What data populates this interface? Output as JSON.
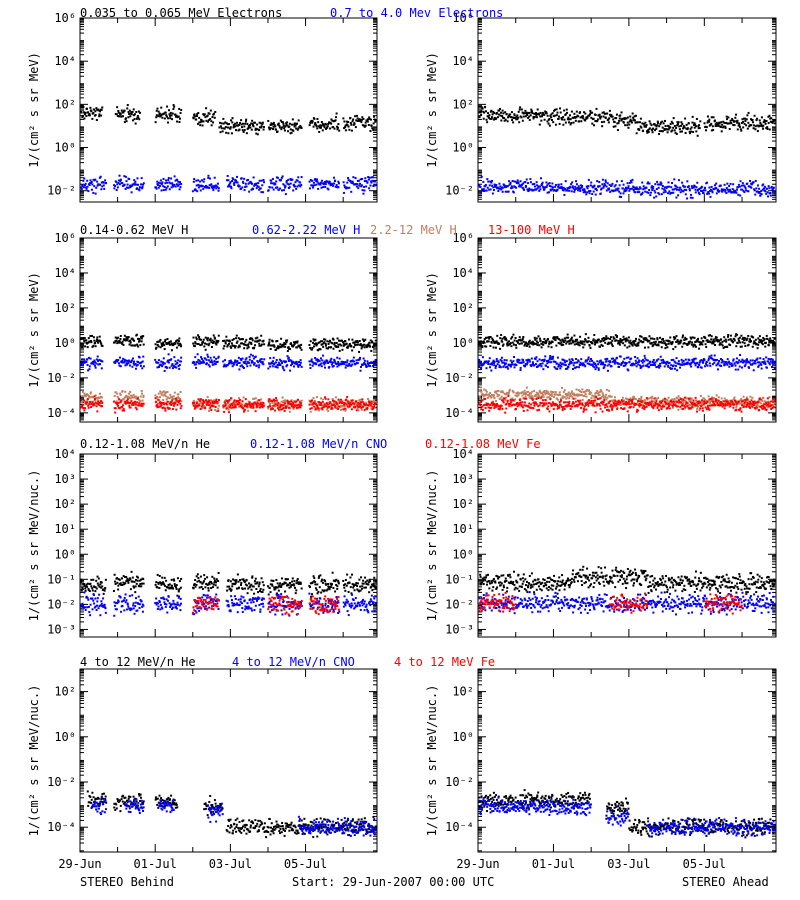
{
  "footer": {
    "left_label": "STEREO Behind",
    "center_label": "Start: 29-Jun-2007 00:00 UTC",
    "right_label": "STEREO Ahead"
  },
  "chart_data": [
    {
      "type": "scatter",
      "row": 0,
      "spacecraft": "STEREO Behind",
      "ylabel": "1/(cm² s sr MeV)",
      "yscale": "log",
      "ylim": [
        0.003,
        1000000
      ],
      "x_range_days": [
        0,
        7.9
      ],
      "x_ticks": [
        {
          "day": 0,
          "label": "29-Jun"
        },
        {
          "day": 2,
          "label": "01-Jul"
        },
        {
          "day": 4,
          "label": "03-Jul"
        },
        {
          "day": 6,
          "label": "05-Jul"
        }
      ],
      "y_ticks": [
        {
          "value": 0.01,
          "label": "10⁻²"
        },
        {
          "value": 1,
          "label": "10⁰"
        },
        {
          "value": 100,
          "label": "10²"
        },
        {
          "value": 10000,
          "label": "10⁴"
        },
        {
          "value": 1000000,
          "label": "10⁶"
        }
      ],
      "series": [
        {
          "name": "0.035 to 0.065 MeV Electrons",
          "color": "#000000",
          "segments": [
            [
              0.0,
              0.6,
              40
            ],
            [
              0.95,
              1.6,
              35
            ],
            [
              2.0,
              2.7,
              35
            ],
            [
              3.0,
              3.6,
              25
            ],
            [
              3.7,
              4.9,
              10
            ],
            [
              5.0,
              5.9,
              10
            ],
            [
              6.1,
              6.9,
              12
            ],
            [
              7.0,
              7.9,
              14
            ]
          ]
        },
        {
          "name": "0.7 to 4.0 Mev Electrons",
          "color": "#0000ff",
          "segments": [
            [
              0.0,
              0.7,
              0.02
            ],
            [
              0.9,
              1.7,
              0.02
            ],
            [
              2.0,
              2.7,
              0.02
            ],
            [
              3.0,
              3.7,
              0.02
            ],
            [
              3.9,
              4.9,
              0.02
            ],
            [
              5.0,
              5.9,
              0.02
            ],
            [
              6.1,
              6.9,
              0.02
            ],
            [
              7.0,
              7.9,
              0.02
            ]
          ]
        }
      ]
    },
    {
      "type": "scatter",
      "row": 0,
      "spacecraft": "STEREO Ahead",
      "ylabel": "1/(cm² s sr MeV)",
      "yscale": "log",
      "ylim": [
        0.003,
        1000000
      ],
      "x_range_days": [
        0,
        7.9
      ],
      "x_ticks": [
        {
          "day": 0,
          "label": "29-Jun"
        },
        {
          "day": 2,
          "label": "01-Jul"
        },
        {
          "day": 4,
          "label": "03-Jul"
        },
        {
          "day": 6,
          "label": "05-Jul"
        }
      ],
      "y_ticks": [
        {
          "value": 0.01,
          "label": "10⁻²"
        },
        {
          "value": 1,
          "label": "10⁰"
        },
        {
          "value": 100,
          "label": "10²"
        },
        {
          "value": 10000,
          "label": "10⁴"
        },
        {
          "value": 1000000,
          "label": "10⁶"
        }
      ],
      "series": [
        {
          "color": "#000000",
          "segments": [
            [
              0.0,
              1.8,
              30
            ],
            [
              1.8,
              3.5,
              25
            ],
            [
              3.5,
              4.2,
              18
            ],
            [
              4.2,
              5.9,
              10
            ],
            [
              6.0,
              7.9,
              13
            ]
          ]
        },
        {
          "color": "#0000ff",
          "segments": [
            [
              0.0,
              2.0,
              0.016
            ],
            [
              2.0,
              4.0,
              0.013
            ],
            [
              4.0,
              6.0,
              0.012
            ],
            [
              6.0,
              7.9,
              0.012
            ]
          ]
        }
      ]
    },
    {
      "type": "scatter",
      "row": 1,
      "spacecraft": "STEREO Behind",
      "ylabel": "1/(cm² s sr MeV)",
      "yscale": "log",
      "ylim": [
        3e-05,
        1000000
      ],
      "x_range_days": [
        0,
        7.9
      ],
      "x_ticks": [
        {
          "day": 0,
          "label": "29-Jun"
        },
        {
          "day": 2,
          "label": "01-Jul"
        },
        {
          "day": 4,
          "label": "03-Jul"
        },
        {
          "day": 6,
          "label": "05-Jul"
        }
      ],
      "y_ticks": [
        {
          "value": 0.0001,
          "label": "10⁻⁴"
        },
        {
          "value": 0.01,
          "label": "10⁻²"
        },
        {
          "value": 1,
          "label": "10⁰"
        },
        {
          "value": 100,
          "label": "10²"
        },
        {
          "value": 10000,
          "label": "10⁴"
        },
        {
          "value": 1000000,
          "label": "10⁶"
        }
      ],
      "series": [
        {
          "name": "0.14-0.62 MeV H",
          "color": "#000000",
          "segments": [
            [
              0.0,
              0.6,
              1.2
            ],
            [
              0.9,
              1.7,
              1.3
            ],
            [
              2.0,
              2.7,
              1.0
            ],
            [
              3.0,
              3.7,
              1.2
            ],
            [
              3.8,
              4.9,
              1.0
            ],
            [
              5.0,
              5.9,
              0.8
            ],
            [
              6.1,
              7.9,
              0.8
            ]
          ]
        },
        {
          "name": "0.62-2.22 MeV H",
          "color": "#0000ff",
          "segments": [
            [
              0.0,
              0.6,
              0.07
            ],
            [
              0.9,
              1.7,
              0.08
            ],
            [
              2.0,
              2.7,
              0.07
            ],
            [
              3.0,
              3.7,
              0.08
            ],
            [
              3.8,
              4.9,
              0.08
            ],
            [
              5.0,
              5.9,
              0.07
            ],
            [
              6.1,
              7.9,
              0.07
            ]
          ]
        },
        {
          "name": "2.2-12 MeV H",
          "color": "#c08060",
          "segments": [
            [
              0.0,
              0.6,
              0.0008
            ],
            [
              0.9,
              1.7,
              0.0008
            ],
            [
              2.0,
              2.7,
              0.0008
            ],
            [
              3.0,
              3.7,
              0.0003
            ],
            [
              3.8,
              4.9,
              0.0003
            ],
            [
              5.0,
              5.9,
              0.0003
            ],
            [
              6.1,
              7.9,
              0.0003
            ]
          ]
        },
        {
          "name": "13-100 MeV H",
          "color": "#ff0000",
          "segments": [
            [
              0.0,
              0.6,
              0.0003
            ],
            [
              0.9,
              1.7,
              0.0003
            ],
            [
              2.0,
              2.7,
              0.0003
            ],
            [
              3.0,
              3.7,
              0.0003
            ],
            [
              3.8,
              4.9,
              0.0003
            ],
            [
              5.0,
              5.9,
              0.0003
            ],
            [
              6.1,
              7.9,
              0.0003
            ]
          ]
        }
      ]
    },
    {
      "type": "scatter",
      "row": 1,
      "spacecraft": "STEREO Ahead",
      "ylabel": "1/(cm² s sr MeV)",
      "yscale": "log",
      "ylim": [
        3e-05,
        1000000
      ],
      "x_range_days": [
        0,
        7.9
      ],
      "x_ticks": [
        {
          "day": 0,
          "label": "29-Jun"
        },
        {
          "day": 2,
          "label": "01-Jul"
        },
        {
          "day": 4,
          "label": "03-Jul"
        },
        {
          "day": 6,
          "label": "05-Jul"
        }
      ],
      "y_ticks": [
        {
          "value": 0.0001,
          "label": "10⁻⁴"
        },
        {
          "value": 0.01,
          "label": "10⁻²"
        },
        {
          "value": 1,
          "label": "10⁰"
        },
        {
          "value": 100,
          "label": "10²"
        },
        {
          "value": 10000,
          "label": "10⁴"
        },
        {
          "value": 1000000,
          "label": "10⁶"
        }
      ],
      "series": [
        {
          "color": "#000000",
          "segments": [
            [
              0.0,
              7.9,
              1.2
            ]
          ]
        },
        {
          "color": "#0000ff",
          "segments": [
            [
              0.0,
              7.9,
              0.07
            ]
          ]
        },
        {
          "color": "#c08060",
          "segments": [
            [
              0.0,
              3.5,
              0.001
            ],
            [
              3.5,
              7.9,
              0.0004
            ]
          ]
        },
        {
          "color": "#ff0000",
          "segments": [
            [
              0.0,
              7.9,
              0.0003
            ]
          ]
        }
      ]
    },
    {
      "type": "scatter",
      "row": 2,
      "spacecraft": "STEREO Behind",
      "ylabel": "1/(cm² s sr MeV/nuc.)",
      "yscale": "log",
      "ylim": [
        0.0005,
        10000
      ],
      "x_range_days": [
        0,
        7.9
      ],
      "x_ticks": [
        {
          "day": 0,
          "label": "29-Jun"
        },
        {
          "day": 2,
          "label": "01-Jul"
        },
        {
          "day": 4,
          "label": "03-Jul"
        },
        {
          "day": 6,
          "label": "05-Jul"
        }
      ],
      "y_ticks": [
        {
          "value": 0.001,
          "label": "10⁻³"
        },
        {
          "value": 0.01,
          "label": "10⁻²"
        },
        {
          "value": 0.1,
          "label": "10⁻¹"
        },
        {
          "value": 1,
          "label": "10⁰"
        },
        {
          "value": 10,
          "label": "10¹"
        },
        {
          "value": 100,
          "label": "10²"
        },
        {
          "value": 1000,
          "label": "10³"
        },
        {
          "value": 10000,
          "label": "10⁴"
        }
      ],
      "series": [
        {
          "name": "0.12-1.08 MeV/n He",
          "color": "#000000",
          "segments": [
            [
              0.0,
              0.7,
              0.06
            ],
            [
              0.9,
              1.7,
              0.08
            ],
            [
              2.0,
              2.7,
              0.06
            ],
            [
              3.0,
              3.7,
              0.08
            ],
            [
              3.9,
              4.9,
              0.06
            ],
            [
              5.0,
              5.9,
              0.06
            ],
            [
              6.1,
              6.9,
              0.06
            ],
            [
              7.0,
              7.9,
              0.06
            ]
          ]
        },
        {
          "name": "0.12-1.08 MeV/n CNO",
          "color": "#0000ff",
          "segments": [
            [
              0.0,
              0.7,
              0.01
            ],
            [
              0.9,
              1.7,
              0.01
            ],
            [
              2.0,
              2.7,
              0.01
            ],
            [
              3.0,
              3.7,
              0.01
            ],
            [
              3.9,
              4.9,
              0.01
            ],
            [
              5.0,
              5.9,
              0.01
            ],
            [
              6.1,
              6.9,
              0.01
            ],
            [
              7.0,
              7.9,
              0.01
            ]
          ]
        },
        {
          "name": "0.12-1.08 MeV Fe",
          "color": "#ff0000",
          "segments": [
            [
              3.0,
              3.7,
              0.01
            ],
            [
              5.0,
              5.9,
              0.01
            ],
            [
              6.1,
              6.9,
              0.01
            ]
          ]
        }
      ]
    },
    {
      "type": "scatter",
      "row": 2,
      "spacecraft": "STEREO Ahead",
      "ylabel": "1/(cm² s sr MeV/nuc.)",
      "yscale": "log",
      "ylim": [
        0.0005,
        10000
      ],
      "x_range_days": [
        0,
        7.9
      ],
      "x_ticks": [
        {
          "day": 0,
          "label": "29-Jun"
        },
        {
          "day": 2,
          "label": "01-Jul"
        },
        {
          "day": 4,
          "label": "03-Jul"
        },
        {
          "day": 6,
          "label": "05-Jul"
        }
      ],
      "y_ticks": [
        {
          "value": 0.001,
          "label": "10⁻³"
        },
        {
          "value": 0.01,
          "label": "10⁻²"
        },
        {
          "value": 0.1,
          "label": "10⁻¹"
        },
        {
          "value": 1,
          "label": "10⁰"
        },
        {
          "value": 10,
          "label": "10¹"
        },
        {
          "value": 100,
          "label": "10²"
        },
        {
          "value": 1000,
          "label": "10³"
        },
        {
          "value": 10000,
          "label": "10⁴"
        }
      ],
      "series": [
        {
          "color": "#000000",
          "segments": [
            [
              0.0,
              2.5,
              0.07
            ],
            [
              2.5,
              4.5,
              0.12
            ],
            [
              4.5,
              7.9,
              0.07
            ]
          ]
        },
        {
          "color": "#0000ff",
          "segments": [
            [
              0.0,
              7.9,
              0.011
            ]
          ]
        },
        {
          "color": "#ff0000",
          "segments": [
            [
              0.0,
              1.0,
              0.011
            ],
            [
              3.5,
              4.5,
              0.011
            ],
            [
              6.0,
              7.0,
              0.011
            ]
          ]
        }
      ]
    },
    {
      "type": "scatter",
      "row": 3,
      "spacecraft": "STEREO Behind",
      "ylabel": "1/(cm² s sr MeV/nuc.)",
      "yscale": "log",
      "ylim": [
        8e-06,
        1000
      ],
      "x_range_days": [
        0,
        7.9
      ],
      "x_ticks": [
        {
          "day": 0,
          "label": "29-Jun"
        },
        {
          "day": 2,
          "label": "01-Jul"
        },
        {
          "day": 4,
          "label": "03-Jul"
        },
        {
          "day": 6,
          "label": "05-Jul"
        }
      ],
      "y_ticks": [
        {
          "value": 0.0001,
          "label": "10⁻⁴"
        },
        {
          "value": 0.01,
          "label": "10⁻²"
        },
        {
          "value": 1,
          "label": "10⁰"
        },
        {
          "value": 100,
          "label": "10²"
        }
      ],
      "series": [
        {
          "name": "4 to 12 MeV/n He",
          "color": "#000000",
          "segments": [
            [
              0.2,
              0.7,
              0.0015
            ],
            [
              0.9,
              1.7,
              0.0013
            ],
            [
              2.0,
              2.6,
              0.0014
            ],
            [
              3.3,
              3.8,
              0.0009
            ],
            [
              3.9,
              7.9,
              0.0001
            ]
          ]
        },
        {
          "name": "4 to 12 MeV/n CNO",
          "color": "#0000ff",
          "segments": [
            [
              0.3,
              0.7,
              0.0008
            ],
            [
              1.2,
              1.7,
              0.0008
            ],
            [
              2.1,
              2.5,
              0.0008
            ],
            [
              3.4,
              3.8,
              0.0005
            ],
            [
              5.8,
              7.9,
              0.0001
            ]
          ]
        },
        {
          "name": "4 to 12 MeV Fe",
          "color": "#ff0000",
          "segments": []
        }
      ]
    },
    {
      "type": "scatter",
      "row": 3,
      "spacecraft": "STEREO Ahead",
      "ylabel": "1/(cm² s sr MeV/nuc.)",
      "yscale": "log",
      "ylim": [
        8e-06,
        1000
      ],
      "x_range_days": [
        0,
        7.9
      ],
      "x_ticks": [
        {
          "day": 0,
          "label": "29-Jun"
        },
        {
          "day": 2,
          "label": "01-Jul"
        },
        {
          "day": 4,
          "label": "03-Jul"
        },
        {
          "day": 6,
          "label": "05-Jul"
        }
      ],
      "y_ticks": [
        {
          "value": 0.0001,
          "label": "10⁻⁴"
        },
        {
          "value": 0.01,
          "label": "10⁻²"
        },
        {
          "value": 1,
          "label": "10⁰"
        },
        {
          "value": 100,
          "label": "10²"
        }
      ],
      "series": [
        {
          "color": "#000000",
          "segments": [
            [
              0.0,
              3.0,
              0.0015
            ],
            [
              3.4,
              4.0,
              0.0008
            ],
            [
              4.0,
              7.9,
              0.0001
            ]
          ]
        },
        {
          "color": "#0000ff",
          "segments": [
            [
              0.0,
              3.0,
              0.0008
            ],
            [
              3.4,
              4.0,
              0.0003
            ],
            [
              4.5,
              7.9,
              0.0001
            ]
          ]
        }
      ]
    }
  ]
}
